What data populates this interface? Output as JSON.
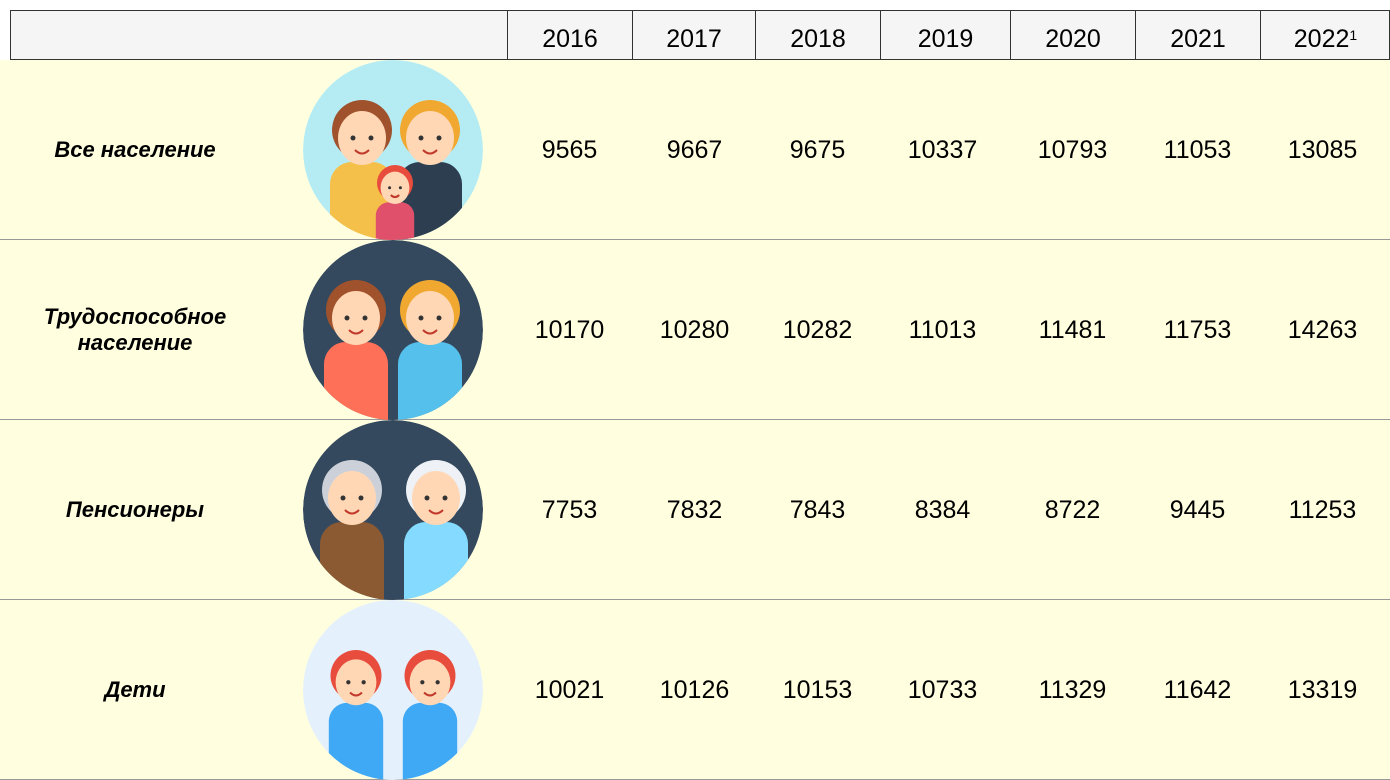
{
  "header": {
    "years": [
      "2016",
      "2017",
      "2018",
      "2019",
      "2020",
      "2021",
      "2022"
    ],
    "footnote": "1"
  },
  "rows": [
    {
      "label": "Все население",
      "values": [
        9565,
        9667,
        9675,
        10337,
        10793,
        11053,
        13085
      ]
    },
    {
      "label": "Трудоспособное население",
      "values": [
        10170,
        10280,
        10282,
        11013,
        11481,
        11753,
        14263
      ]
    },
    {
      "label": "Пенсионеры",
      "values": [
        7753,
        7832,
        7843,
        8384,
        8722,
        9445,
        11253
      ]
    },
    {
      "label": "Дети",
      "values": [
        10021,
        10126,
        10153,
        10733,
        11329,
        11642,
        13319
      ]
    }
  ]
}
